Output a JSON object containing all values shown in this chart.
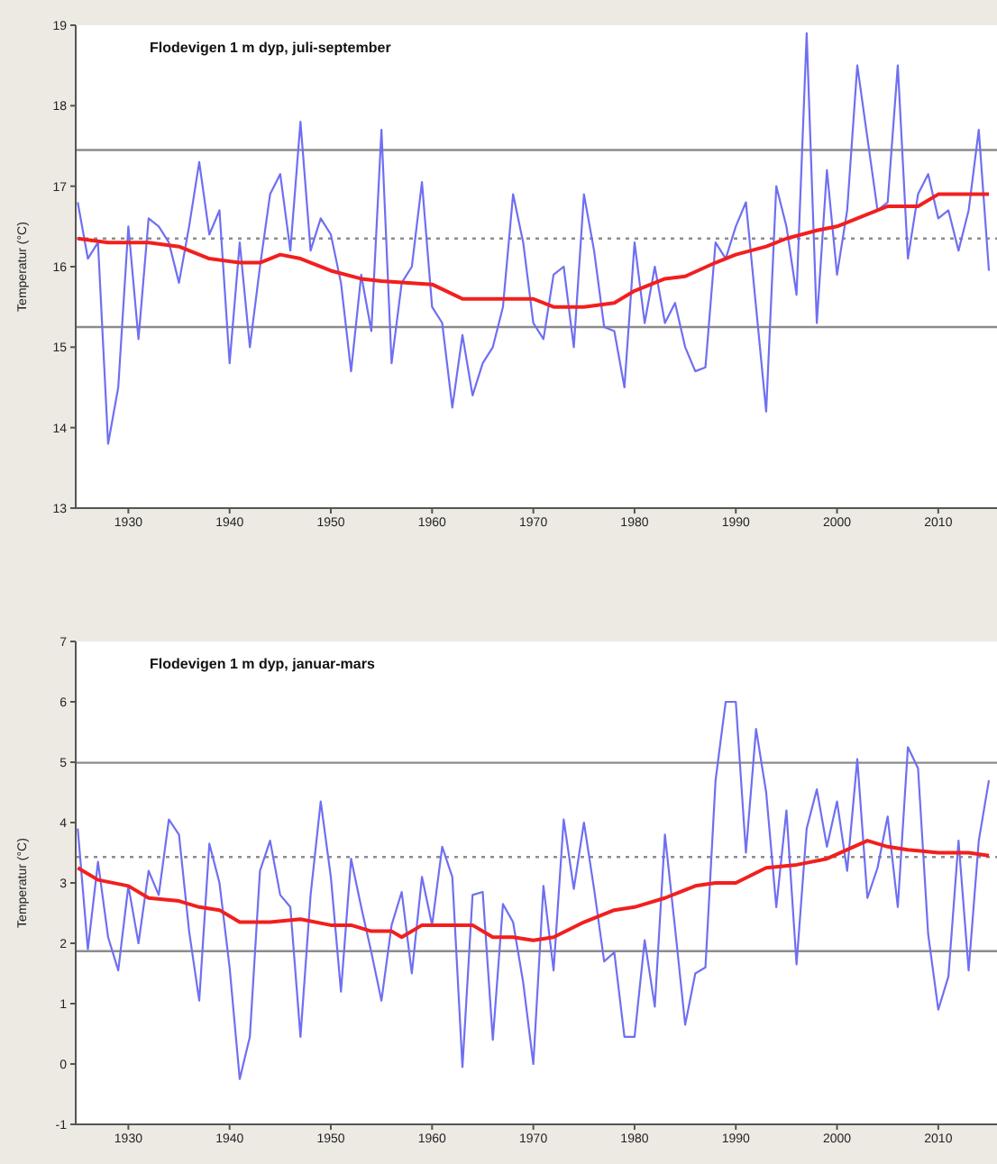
{
  "chart_data": [
    {
      "type": "line",
      "title": "Flodevigen 1 m dyp, juli-september",
      "ylabel": "Temperatur (°C)",
      "xlim": [
        1924.8,
        2015.8
      ],
      "xticks": [
        1930,
        1940,
        1950,
        1960,
        1970,
        1980,
        1990,
        2000,
        2010
      ],
      "ylim": [
        13,
        19
      ],
      "yticks": [
        13,
        14,
        15,
        16,
        17,
        18,
        19
      ],
      "grid": false,
      "marker": "none",
      "line_style": "solid",
      "ref_lines": [
        {
          "axis": "y",
          "value": 17.45,
          "color": "#8c8c8c",
          "line_style": "solid"
        },
        {
          "axis": "y",
          "value": 16.35,
          "color": "#8c8c8c",
          "line_style": "dotted"
        },
        {
          "axis": "y",
          "value": 15.25,
          "color": "#8c8c8c",
          "line_style": "solid"
        }
      ],
      "series": [
        {
          "color": "#6f6ff2",
          "x": [
            1925,
            1926,
            1927,
            1928,
            1929,
            1930,
            1931,
            1932,
            1933,
            1934,
            1935,
            1936,
            1937,
            1938,
            1939,
            1940,
            1941,
            1942,
            1943,
            1944,
            1945,
            1946,
            1947,
            1948,
            1949,
            1950,
            1951,
            1952,
            1953,
            1954,
            1955,
            1956,
            1957,
            1958,
            1959,
            1960,
            1961,
            1962,
            1963,
            1964,
            1965,
            1966,
            1967,
            1968,
            1969,
            1970,
            1971,
            1972,
            1973,
            1974,
            1975,
            1976,
            1977,
            1978,
            1979,
            1980,
            1981,
            1982,
            1983,
            1984,
            1985,
            1986,
            1987,
            1988,
            1989,
            1990,
            1991,
            1992,
            1993,
            1994,
            1995,
            1996,
            1997,
            1998,
            1999,
            2000,
            2001,
            2002,
            2003,
            2004,
            2005,
            2006,
            2007,
            2008,
            2009,
            2010,
            2011,
            2012,
            2013,
            2014,
            2015
          ],
          "values": [
            16.8,
            16.1,
            16.3,
            13.8,
            14.5,
            16.5,
            15.1,
            16.6,
            16.5,
            16.3,
            15.8,
            16.5,
            17.3,
            16.4,
            16.7,
            14.8,
            16.3,
            15.0,
            16.0,
            16.9,
            17.15,
            16.2,
            17.8,
            16.2,
            16.6,
            16.4,
            15.8,
            14.7,
            15.9,
            15.2,
            17.7,
            14.8,
            15.8,
            16.0,
            17.05,
            15.5,
            15.3,
            14.25,
            15.15,
            14.4,
            14.8,
            15.0,
            15.5,
            16.9,
            16.3,
            15.3,
            15.1,
            15.9,
            16.0,
            15.0,
            16.9,
            16.2,
            15.25,
            15.2,
            14.5,
            16.3,
            15.3,
            16.0,
            15.3,
            15.55,
            15.0,
            14.7,
            14.75,
            16.3,
            16.1,
            16.5,
            16.8,
            15.5,
            14.2,
            17.0,
            16.5,
            15.65,
            18.9,
            15.3,
            17.2,
            15.9,
            16.7,
            18.5,
            17.6,
            16.7,
            16.8,
            18.5,
            16.1,
            16.9,
            17.15,
            16.6,
            16.7,
            16.2,
            16.7,
            17.7,
            15.95
          ]
        },
        {
          "color": "#f21f1f",
          "x": [
            1925,
            1928,
            1932,
            1935,
            1938,
            1941,
            1943,
            1945,
            1947,
            1950,
            1953,
            1955,
            1960,
            1963,
            1966,
            1968,
            1970,
            1972,
            1975,
            1978,
            1980,
            1983,
            1985,
            1988,
            1990,
            1993,
            1995,
            1998,
            2000,
            2003,
            2005,
            2008,
            2010,
            2015
          ],
          "values": [
            16.35,
            16.3,
            16.3,
            16.25,
            16.1,
            16.05,
            16.05,
            16.15,
            16.1,
            15.95,
            15.85,
            15.82,
            15.78,
            15.6,
            15.6,
            15.6,
            15.6,
            15.5,
            15.5,
            15.55,
            15.7,
            15.85,
            15.88,
            16.05,
            16.15,
            16.25,
            16.35,
            16.45,
            16.5,
            16.65,
            16.75,
            16.75,
            16.9,
            16.9
          ]
        }
      ]
    },
    {
      "type": "line",
      "title": "Flodevigen 1 m dyp, januar-mars",
      "ylabel": "Temperatur (°C)",
      "xlim": [
        1924.8,
        2015.8
      ],
      "xticks": [
        1930,
        1940,
        1950,
        1960,
        1970,
        1980,
        1990,
        2000,
        2010
      ],
      "ylim": [
        -1,
        7
      ],
      "yticks": [
        -1,
        0,
        1,
        2,
        3,
        4,
        5,
        6,
        7
      ],
      "grid": false,
      "marker": "none",
      "line_style": "solid",
      "ref_lines": [
        {
          "axis": "y",
          "value": 4.99,
          "color": "#8c8c8c",
          "line_style": "solid"
        },
        {
          "axis": "y",
          "value": 3.43,
          "color": "#8c8c8c",
          "line_style": "dotted"
        },
        {
          "axis": "y",
          "value": 1.87,
          "color": "#8c8c8c",
          "line_style": "solid"
        }
      ],
      "series": [
        {
          "color": "#6f6ff2",
          "x": [
            1925,
            1926,
            1927,
            1928,
            1929,
            1930,
            1931,
            1932,
            1933,
            1934,
            1935,
            1936,
            1937,
            1938,
            1939,
            1940,
            1941,
            1942,
            1943,
            1944,
            1945,
            1946,
            1947,
            1948,
            1949,
            1950,
            1951,
            1952,
            1953,
            1954,
            1955,
            1956,
            1957,
            1958,
            1959,
            1960,
            1961,
            1962,
            1963,
            1964,
            1965,
            1966,
            1967,
            1968,
            1969,
            1970,
            1971,
            1972,
            1973,
            1974,
            1975,
            1976,
            1977,
            1978,
            1979,
            1980,
            1981,
            1982,
            1983,
            1984,
            1985,
            1986,
            1987,
            1988,
            1989,
            1990,
            1991,
            1992,
            1993,
            1994,
            1995,
            1996,
            1997,
            1998,
            1999,
            2000,
            2001,
            2002,
            2003,
            2004,
            2005,
            2006,
            2007,
            2008,
            2009,
            2010,
            2011,
            2012,
            2013,
            2014,
            2015
          ],
          "values": [
            3.9,
            1.9,
            3.35,
            2.1,
            1.55,
            2.95,
            2.0,
            3.2,
            2.8,
            4.05,
            3.8,
            2.2,
            1.05,
            3.65,
            3.0,
            1.6,
            -0.25,
            0.45,
            3.2,
            3.7,
            2.8,
            2.6,
            0.45,
            2.8,
            4.35,
            3.1,
            1.2,
            3.4,
            2.6,
            1.85,
            1.05,
            2.3,
            2.85,
            1.5,
            3.1,
            2.3,
            3.6,
            3.1,
            -0.05,
            2.8,
            2.85,
            0.4,
            2.65,
            2.35,
            1.35,
            0.0,
            2.95,
            1.55,
            4.05,
            2.9,
            4.0,
            2.9,
            1.7,
            1.85,
            0.45,
            0.45,
            2.05,
            0.95,
            3.8,
            2.25,
            0.65,
            1.5,
            1.6,
            4.7,
            6.0,
            6.0,
            3.5,
            5.55,
            4.5,
            2.6,
            4.2,
            1.65,
            3.9,
            4.55,
            3.6,
            4.35,
            3.2,
            5.05,
            2.75,
            3.25,
            4.1,
            2.6,
            5.25,
            4.9,
            2.15,
            0.9,
            1.45,
            3.7,
            1.55,
            3.7,
            4.7
          ]
        },
        {
          "color": "#f21f1f",
          "x": [
            1925,
            1927,
            1930,
            1932,
            1935,
            1937,
            1939,
            1941,
            1944,
            1947,
            1950,
            1952,
            1954,
            1956,
            1957,
            1959,
            1962,
            1964,
            1966,
            1968,
            1970,
            1972,
            1975,
            1978,
            1980,
            1983,
            1986,
            1988,
            1990,
            1993,
            1996,
            1999,
            2001,
            2003,
            2005,
            2007,
            2010,
            2013,
            2015
          ],
          "values": [
            3.25,
            3.05,
            2.95,
            2.75,
            2.7,
            2.6,
            2.55,
            2.35,
            2.35,
            2.4,
            2.3,
            2.3,
            2.2,
            2.2,
            2.1,
            2.3,
            2.3,
            2.3,
            2.1,
            2.1,
            2.05,
            2.1,
            2.35,
            2.55,
            2.6,
            2.75,
            2.95,
            3.0,
            3.0,
            3.25,
            3.3,
            3.4,
            3.55,
            3.7,
            3.6,
            3.55,
            3.5,
            3.5,
            3.45
          ]
        }
      ]
    }
  ]
}
